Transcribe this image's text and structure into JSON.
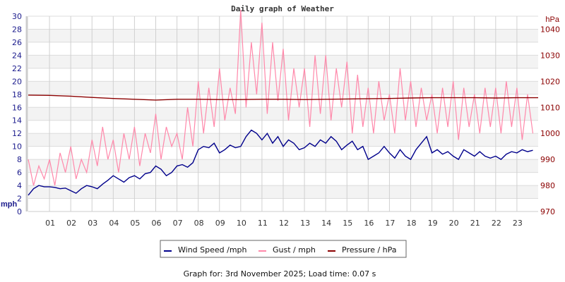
{
  "chart_data": {
    "type": "line",
    "title": "Daily graph of Weather",
    "ylabel_left": "mph",
    "ylabel_right": "hPa",
    "ylim_left": [
      0,
      30
    ],
    "ylim_right": [
      970,
      1045
    ],
    "yticks_left": [
      "0",
      "2",
      "4",
      "6",
      "8",
      "10",
      "12",
      "14",
      "16",
      "18",
      "20",
      "22",
      "24",
      "26",
      "28",
      "30"
    ],
    "yticks_right": [
      "970",
      "980",
      "990",
      "1000",
      "1010",
      "1020",
      "1030",
      "1040"
    ],
    "xlim": [
      0,
      24
    ],
    "xticks": [
      "01",
      "02",
      "03",
      "04",
      "05",
      "06",
      "07",
      "08",
      "09",
      "10",
      "11",
      "12",
      "13",
      "14",
      "15",
      "16",
      "17",
      "18",
      "19",
      "20",
      "21",
      "22",
      "23"
    ],
    "grid": true,
    "legend_placement": "bottom",
    "series": [
      {
        "name": "Wind Speed /mph",
        "axis": "left",
        "color": "#00008b",
        "x_step_hours": 0.25,
        "values": [
          2.5,
          3.5,
          4,
          3.8,
          3.8,
          3.7,
          3.5,
          3.6,
          3.2,
          2.8,
          3.5,
          4,
          3.8,
          3.5,
          4.2,
          4.8,
          5.5,
          5,
          4.5,
          5.2,
          5.5,
          5,
          5.8,
          6,
          7,
          6.5,
          5.5,
          6,
          7,
          7.2,
          6.8,
          7.5,
          9.5,
          10,
          9.8,
          10.5,
          9,
          9.5,
          10.2,
          9.8,
          10,
          11.5,
          12.5,
          12,
          11,
          12,
          10.5,
          11.5,
          10,
          11,
          10.5,
          9.5,
          9.8,
          10.5,
          10,
          11,
          10.5,
          11.5,
          10.8,
          9.5,
          10.2,
          10.8,
          9.5,
          10,
          8,
          8.5,
          9,
          10,
          9,
          8.2,
          9.5,
          8.5,
          8,
          9.5,
          10.5,
          11.5,
          9,
          9.5,
          8.8,
          9.2,
          8.5,
          8,
          9.5,
          9,
          8.5,
          9.2,
          8.5,
          8.2,
          8.5,
          8,
          8.8,
          9.2,
          9,
          9.5,
          9.2,
          9.4
        ]
      },
      {
        "name": "Gust / mph",
        "axis": "left",
        "color": "#ff88aa",
        "x_step_hours": 0.25,
        "values": [
          8,
          4,
          7,
          5,
          8,
          4,
          9,
          6,
          10,
          5,
          8,
          6,
          11,
          7,
          13,
          8,
          11,
          6,
          12,
          8,
          13,
          7,
          12,
          9,
          15,
          8,
          13,
          10,
          12,
          8,
          16,
          10,
          20,
          12,
          19,
          13,
          22,
          14,
          19,
          15,
          31,
          16,
          26,
          18,
          29,
          15,
          26,
          17,
          25,
          14,
          22,
          16,
          22,
          13,
          24,
          15,
          24,
          14,
          22,
          16,
          23,
          12,
          21,
          13,
          19,
          12,
          20,
          14,
          18,
          12,
          22,
          14,
          20,
          13,
          19,
          14,
          18,
          12,
          19,
          13,
          20,
          11,
          19,
          13,
          18,
          12,
          19,
          13,
          19,
          12,
          20,
          13,
          19,
          11,
          18,
          12
        ]
      },
      {
        "name": "Pressure / hPa",
        "axis": "right",
        "color": "#8b0000",
        "x_step_hours": 1,
        "values": [
          1014.7,
          1014.6,
          1014.3,
          1013.8,
          1013.4,
          1013.1,
          1012.8,
          1013.1,
          1013.1,
          1013.0,
          1013.0,
          1013.1,
          1013.1,
          1013.0,
          1013.1,
          1013.2,
          1013.3,
          1013.4,
          1013.6,
          1013.7,
          1013.7,
          1013.7,
          1013.6,
          1013.7,
          1013.7
        ]
      }
    ]
  },
  "footer": "Graph for: 3rd November 2025; Load time: 0.07 s"
}
